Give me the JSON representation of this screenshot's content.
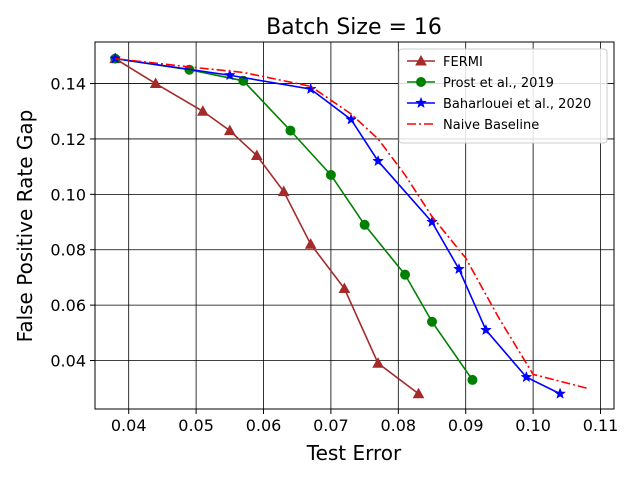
{
  "chart_data": {
    "type": "line",
    "title": "Batch Size = 16",
    "xlabel": "Test Error",
    "ylabel": "False Positive Rate Gap",
    "xlim": [
      0.035,
      0.112
    ],
    "ylim": [
      0.0225,
      0.155
    ],
    "xticks": [
      0.04,
      0.05,
      0.06,
      0.07,
      0.08,
      0.09,
      0.1,
      0.11
    ],
    "xtick_labels": [
      "0.04",
      "0.05",
      "0.06",
      "0.07",
      "0.08",
      "0.09",
      "0.10",
      "0.11"
    ],
    "yticks": [
      0.04,
      0.06,
      0.08,
      0.1,
      0.12,
      0.14
    ],
    "ytick_labels": [
      "0.04",
      "0.06",
      "0.08",
      "0.10",
      "0.12",
      "0.14"
    ],
    "grid": true,
    "legend_position": "top-right",
    "series": [
      {
        "name": "FERMI",
        "color": "#a52a2a",
        "marker": "triangle",
        "linestyle": "solid",
        "x": [
          0.038,
          0.044,
          0.051,
          0.055,
          0.059,
          0.063,
          0.067,
          0.072,
          0.077,
          0.083
        ],
        "y": [
          0.149,
          0.14,
          0.13,
          0.123,
          0.114,
          0.101,
          0.082,
          0.066,
          0.039,
          0.028
        ]
      },
      {
        "name": "Prost et al., 2019",
        "color": "#008000",
        "marker": "circle",
        "linestyle": "solid",
        "x": [
          0.038,
          0.049,
          0.057,
          0.064,
          0.07,
          0.075,
          0.081,
          0.085,
          0.091
        ],
        "y": [
          0.149,
          0.145,
          0.141,
          0.123,
          0.107,
          0.089,
          0.071,
          0.054,
          0.033
        ]
      },
      {
        "name": "Baharlouei et al., 2020",
        "color": "#0000ff",
        "marker": "star",
        "linestyle": "solid",
        "x": [
          0.038,
          0.055,
          0.067,
          0.073,
          0.077,
          0.085,
          0.089,
          0.093,
          0.099,
          0.104
        ],
        "y": [
          0.149,
          0.143,
          0.138,
          0.127,
          0.112,
          0.09,
          0.073,
          0.051,
          0.034,
          0.028
        ]
      },
      {
        "name": "Naive Baseline",
        "color": "#ff0000",
        "marker": "none",
        "linestyle": "dashdot",
        "x": [
          0.038,
          0.049,
          0.057,
          0.067,
          0.073,
          0.077,
          0.081,
          0.085,
          0.09,
          0.095,
          0.1,
          0.108
        ],
        "y": [
          0.149,
          0.146,
          0.144,
          0.139,
          0.129,
          0.12,
          0.107,
          0.092,
          0.077,
          0.055,
          0.035,
          0.03
        ]
      }
    ]
  }
}
